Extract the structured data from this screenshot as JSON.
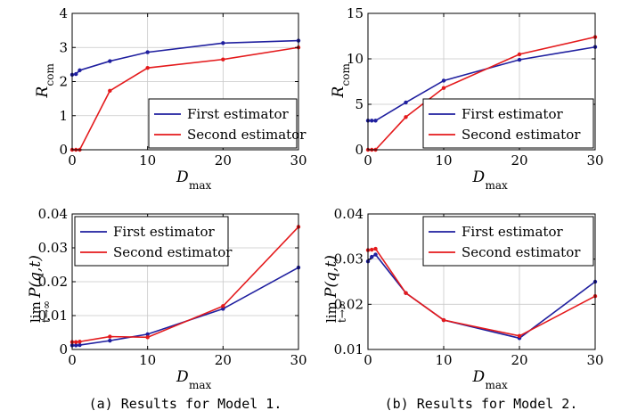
{
  "chart_data": [
    {
      "type": "line",
      "ylabel": "R_com",
      "ylabel_main": "R",
      "ylabel_sub": "com",
      "xlabel_main": "D",
      "xlabel_sub": "max",
      "xlim": [
        0,
        30
      ],
      "ylim": [
        0,
        4
      ],
      "xticks": [
        0,
        10,
        20,
        30
      ],
      "yticks": [
        0,
        1,
        2,
        3,
        4
      ],
      "legend_position": "bottom-right",
      "series": [
        {
          "name": "First estimator",
          "color": "#1f1f9f",
          "x": [
            0,
            0.5,
            1,
            5,
            10,
            20,
            30
          ],
          "y": [
            2.2,
            2.22,
            2.33,
            2.6,
            2.86,
            3.13,
            3.2
          ]
        },
        {
          "name": "Second estimator",
          "color": "#e41a1c",
          "x": [
            0,
            0.5,
            1,
            5,
            10,
            20,
            30
          ],
          "y": [
            0,
            0,
            0,
            1.73,
            2.4,
            2.65,
            3.0
          ]
        }
      ]
    },
    {
      "type": "line",
      "ylabel": "R_com",
      "ylabel_main": "R",
      "ylabel_sub": "com",
      "xlabel_main": "D",
      "xlabel_sub": "max",
      "xlim": [
        0,
        30
      ],
      "ylim": [
        0,
        15
      ],
      "xticks": [
        0,
        10,
        20,
        30
      ],
      "yticks": [
        0,
        5,
        10,
        15
      ],
      "legend_position": "bottom-right",
      "series": [
        {
          "name": "First estimator",
          "color": "#1f1f9f",
          "x": [
            0,
            0.5,
            1,
            5,
            10,
            20,
            30
          ],
          "y": [
            3.2,
            3.2,
            3.2,
            5.2,
            7.6,
            9.9,
            11.3
          ]
        },
        {
          "name": "Second estimator",
          "color": "#e41a1c",
          "x": [
            0,
            0.5,
            1,
            5,
            10,
            20,
            30
          ],
          "y": [
            0,
            0,
            0,
            3.6,
            6.8,
            10.5,
            12.4
          ]
        }
      ]
    },
    {
      "type": "line",
      "ylabel": "lim P(q,t)",
      "ylabel_main": "P(q,t)",
      "ylabel_lim": "lim",
      "ylabel_limsub": "t→∞",
      "xlabel_main": "D",
      "xlabel_sub": "max",
      "xlim": [
        0,
        30
      ],
      "ylim": [
        0,
        0.04
      ],
      "xticks": [
        0,
        10,
        20,
        30
      ],
      "yticks": [
        0,
        0.01,
        0.02,
        0.03,
        0.04
      ],
      "legend_position": "top-left",
      "series": [
        {
          "name": "First estimator",
          "color": "#1f1f9f",
          "x": [
            0,
            0.5,
            1,
            5,
            10,
            20,
            30
          ],
          "y": [
            0.0012,
            0.0012,
            0.0013,
            0.0026,
            0.0045,
            0.012,
            0.0242
          ]
        },
        {
          "name": "Second estimator",
          "color": "#e41a1c",
          "x": [
            0,
            0.5,
            1,
            5,
            10,
            20,
            30
          ],
          "y": [
            0.0022,
            0.0022,
            0.0023,
            0.0038,
            0.0036,
            0.0128,
            0.0362
          ]
        }
      ]
    },
    {
      "type": "line",
      "ylabel": "lim P(q,t)",
      "ylabel_main": "P(q,t)",
      "ylabel_lim": "lim",
      "ylabel_limsub": "t→∞",
      "xlabel_main": "D",
      "xlabel_sub": "max",
      "xlim": [
        0,
        30
      ],
      "ylim": [
        0.01,
        0.04
      ],
      "xticks": [
        0,
        10,
        20,
        30
      ],
      "yticks": [
        0.01,
        0.02,
        0.03,
        0.04
      ],
      "legend_position": "top-right",
      "series": [
        {
          "name": "First estimator",
          "color": "#1f1f9f",
          "x": [
            0,
            0.5,
            1,
            5,
            10,
            20,
            30
          ],
          "y": [
            0.0295,
            0.0305,
            0.031,
            0.0225,
            0.0165,
            0.0125,
            0.025
          ]
        },
        {
          "name": "Second estimator",
          "color": "#e41a1c",
          "x": [
            0,
            0.5,
            1,
            5,
            10,
            20,
            30
          ],
          "y": [
            0.032,
            0.0321,
            0.0323,
            0.0225,
            0.0165,
            0.013,
            0.0218
          ]
        }
      ]
    }
  ],
  "captions": [
    "(a) Results for Model 1.",
    "(b) Results for Model 2."
  ]
}
